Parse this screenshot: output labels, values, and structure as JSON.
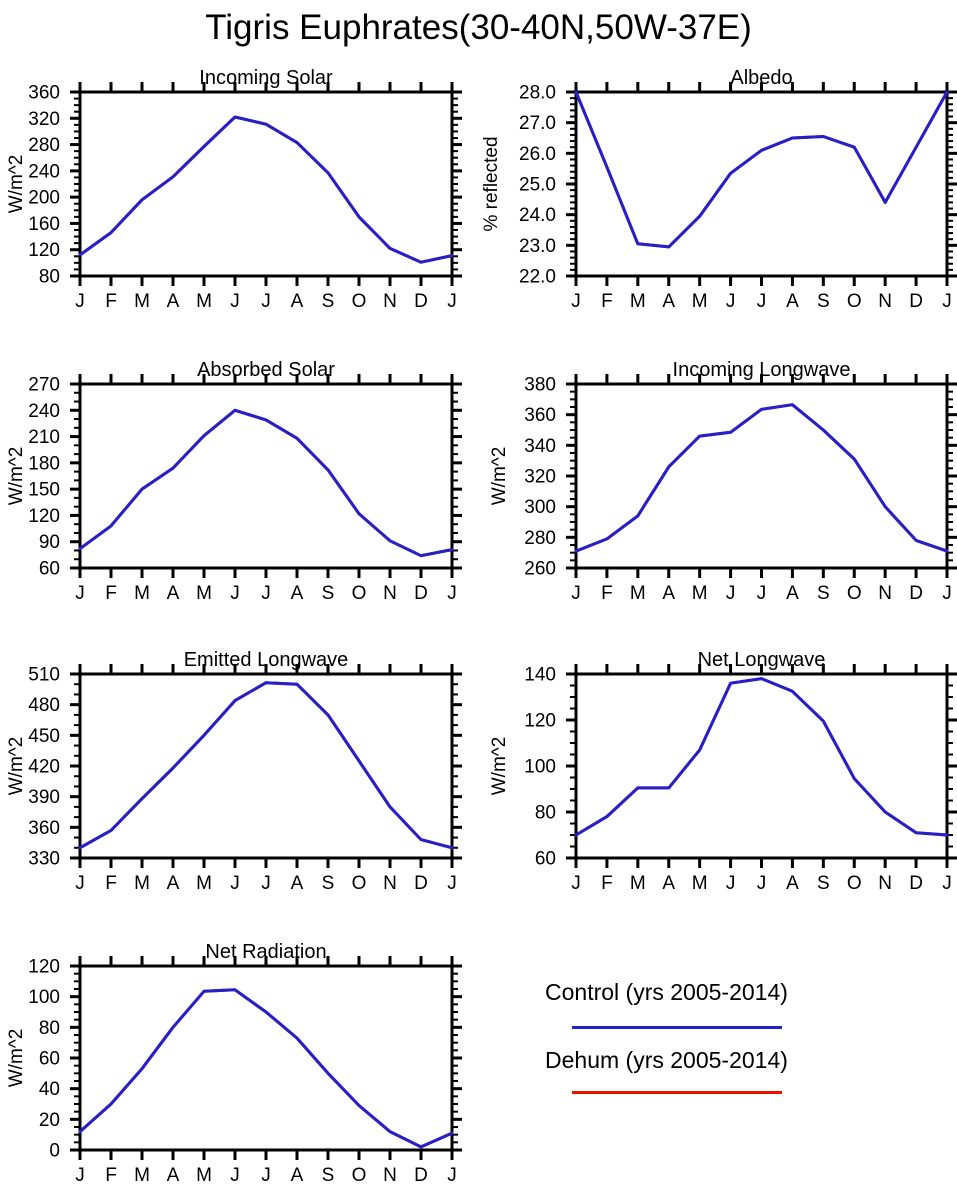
{
  "title": "Tigris Euphrates(30-40N,50W-37E)",
  "months": [
    "J",
    "F",
    "M",
    "A",
    "M",
    "J",
    "J",
    "A",
    "S",
    "O",
    "N",
    "D",
    "J"
  ],
  "colors": {
    "control": "#2222cc",
    "dehum": "#ee1100",
    "axis": "#000000",
    "background": "#ffffff"
  },
  "legend": [
    {
      "label": "Control (yrs 2005-2014)",
      "color": "#2222cc"
    },
    {
      "label": "Dehum (yrs 2005-2014)",
      "color": "#ee1100"
    }
  ],
  "chart_data": [
    {
      "type": "line",
      "title": "Incoming Solar",
      "ylabel": "W/m^2",
      "ylim": [
        80,
        360
      ],
      "ytick_step": 40,
      "minor_ticks": 3,
      "decimals": 0,
      "categories": [
        "J",
        "F",
        "M",
        "A",
        "M",
        "J",
        "J",
        "A",
        "S",
        "O",
        "N",
        "D",
        "J"
      ],
      "series": [
        {
          "name": "Control (yrs 2005-2014)",
          "color": "#2222cc",
          "values": [
            112,
            146,
            196,
            231,
            277,
            322,
            311,
            283,
            237,
            170,
            122,
            101,
            111
          ]
        },
        {
          "name": "Dehum (yrs 2005-2014)",
          "color": "#ee1100",
          "values": [
            112,
            146,
            196,
            231,
            277,
            322,
            311,
            283,
            237,
            170,
            122,
            101,
            111
          ]
        }
      ]
    },
    {
      "type": "line",
      "title": "Albedo",
      "ylabel": "% reflected",
      "ylim": [
        22,
        28
      ],
      "ytick_step": 1,
      "minor_ticks": 4,
      "decimals": 1,
      "categories": [
        "J",
        "F",
        "M",
        "A",
        "M",
        "J",
        "J",
        "A",
        "S",
        "O",
        "N",
        "D",
        "J"
      ],
      "series": [
        {
          "name": "Control (yrs 2005-2014)",
          "color": "#2222cc",
          "values": [
            28.0,
            25.55,
            23.05,
            22.95,
            23.95,
            25.35,
            26.1,
            26.5,
            26.55,
            26.2,
            24.4,
            26.2,
            28.0
          ]
        },
        {
          "name": "Dehum (yrs 2005-2014)",
          "color": "#ee1100",
          "values": [
            28.0,
            25.55,
            23.05,
            22.95,
            23.95,
            25.35,
            26.1,
            26.5,
            26.55,
            26.2,
            24.4,
            26.2,
            28.0
          ]
        }
      ]
    },
    {
      "type": "line",
      "title": "Absorbed Solar",
      "ylabel": "W/m^2",
      "ylim": [
        60,
        270
      ],
      "ytick_step": 30,
      "minor_ticks": 2,
      "decimals": 0,
      "categories": [
        "J",
        "F",
        "M",
        "A",
        "M",
        "J",
        "J",
        "A",
        "S",
        "O",
        "N",
        "D",
        "J"
      ],
      "series": [
        {
          "name": "Control (yrs 2005-2014)",
          "color": "#2222cc",
          "values": [
            82,
            108,
            150,
            174,
            211,
            240,
            229,
            208,
            172,
            122,
            91,
            74,
            81
          ]
        },
        {
          "name": "Dehum (yrs 2005-2014)",
          "color": "#ee1100",
          "values": [
            82,
            108,
            150,
            174,
            211,
            240,
            229,
            208,
            172,
            122,
            91,
            74,
            81
          ]
        }
      ]
    },
    {
      "type": "line",
      "title": "Incoming Longwave",
      "ylabel": "W/m^2",
      "ylim": [
        260,
        380
      ],
      "ytick_step": 20,
      "minor_ticks": 3,
      "decimals": 0,
      "categories": [
        "J",
        "F",
        "M",
        "A",
        "M",
        "J",
        "J",
        "A",
        "S",
        "O",
        "N",
        "D",
        "J"
      ],
      "series": [
        {
          "name": "Control (yrs 2005-2014)",
          "color": "#2222cc",
          "values": [
            271,
            279,
            294,
            326,
            346,
            348.5,
            363.5,
            366.5,
            350,
            331,
            300,
            278,
            271
          ]
        },
        {
          "name": "Dehum (yrs 2005-2014)",
          "color": "#ee1100",
          "values": [
            271,
            279,
            294,
            326,
            346,
            348.5,
            363.5,
            366.5,
            350,
            331,
            300,
            278,
            271
          ]
        }
      ]
    },
    {
      "type": "line",
      "title": "Emitted Longwave",
      "ylabel": "W/m^2",
      "ylim": [
        330,
        510
      ],
      "ytick_step": 30,
      "minor_ticks": 2,
      "decimals": 0,
      "categories": [
        "J",
        "F",
        "M",
        "A",
        "M",
        "J",
        "J",
        "A",
        "S",
        "O",
        "N",
        "D",
        "J"
      ],
      "series": [
        {
          "name": "Control (yrs 2005-2014)",
          "color": "#2222cc",
          "values": [
            340,
            357,
            388,
            418,
            450,
            484,
            501.5,
            500,
            470,
            425,
            380,
            348,
            340
          ]
        },
        {
          "name": "Dehum (yrs 2005-2014)",
          "color": "#ee1100",
          "values": [
            340,
            357,
            388,
            418,
            450,
            484,
            501.5,
            500,
            470,
            425,
            380,
            348,
            340
          ]
        }
      ]
    },
    {
      "type": "line",
      "title": "Net Longwave",
      "ylabel": "W/m^2",
      "ylim": [
        60,
        140
      ],
      "ytick_step": 20,
      "minor_ticks": 3,
      "decimals": 0,
      "categories": [
        "J",
        "F",
        "M",
        "A",
        "M",
        "J",
        "J",
        "A",
        "S",
        "O",
        "N",
        "D",
        "J"
      ],
      "series": [
        {
          "name": "Control (yrs 2005-2014)",
          "color": "#2222cc",
          "values": [
            70,
            78,
            90.5,
            90.5,
            107,
            136,
            138,
            132.5,
            119.5,
            94.5,
            80,
            71,
            70
          ]
        },
        {
          "name": "Dehum (yrs 2005-2014)",
          "color": "#ee1100",
          "values": [
            70,
            78,
            90.5,
            90.5,
            107,
            136,
            138,
            132.5,
            119.5,
            94.5,
            80,
            71,
            70
          ]
        }
      ]
    },
    {
      "type": "line",
      "title": "Net Radiation",
      "ylabel": "W/m^2",
      "ylim": [
        0,
        120
      ],
      "ytick_step": 20,
      "minor_ticks": 3,
      "decimals": 0,
      "categories": [
        "J",
        "F",
        "M",
        "A",
        "M",
        "J",
        "J",
        "A",
        "S",
        "O",
        "N",
        "D",
        "J"
      ],
      "series": [
        {
          "name": "Control (yrs 2005-2014)",
          "color": "#2222cc",
          "values": [
            12,
            30,
            53,
            80,
            103.5,
            104.5,
            90,
            73,
            50,
            29,
            12,
            2,
            11
          ]
        },
        {
          "name": "Dehum (yrs 2005-2014)",
          "color": "#ee1100",
          "values": [
            12,
            30,
            53,
            80,
            103.5,
            104.5,
            90,
            73,
            50,
            29,
            12,
            2,
            11
          ]
        }
      ]
    }
  ]
}
